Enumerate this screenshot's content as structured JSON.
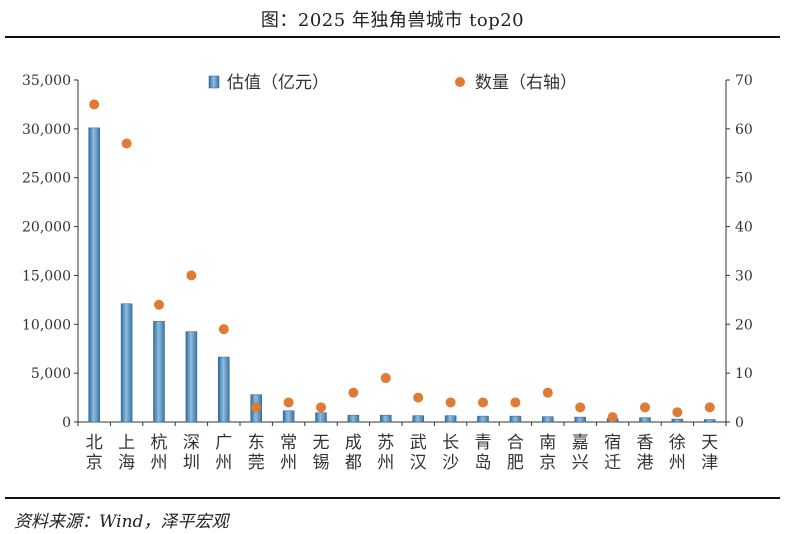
{
  "title": "图：2025 年独角兽城市 top20",
  "source": "资料来源：Wind，泽平宏观",
  "chart_data": {
    "type": "bar",
    "categories": [
      "北京",
      "上海",
      "杭州",
      "深圳",
      "广州",
      "东莞",
      "常州",
      "无锡",
      "成都",
      "苏州",
      "武汉",
      "长沙",
      "青岛",
      "合肥",
      "南京",
      "嘉兴",
      "宿迁",
      "香港",
      "徐州",
      "天津"
    ],
    "series": [
      {
        "name": "估值（亿元）",
        "kind": "bar",
        "axis": "left",
        "color": "#4f87b5",
        "values": [
          30100,
          12100,
          10300,
          9250,
          6650,
          2800,
          1150,
          950,
          700,
          700,
          650,
          650,
          600,
          600,
          550,
          500,
          350,
          450,
          300,
          250
        ]
      },
      {
        "name": "数量（右轴）",
        "kind": "scatter",
        "axis": "right",
        "color": "#e07b33",
        "values": [
          65,
          57,
          24,
          30,
          19,
          3,
          4,
          3,
          6,
          9,
          5,
          4,
          4,
          4,
          6,
          3,
          1,
          3,
          2,
          3
        ]
      }
    ],
    "ylim_left": [
      0,
      35000
    ],
    "yticks_left": [
      "0",
      "5,000",
      "10,000",
      "15,000",
      "20,000",
      "25,000",
      "30,000",
      "35,000"
    ],
    "ylim_right": [
      0,
      70
    ],
    "yticks_right": [
      "0",
      "10",
      "20",
      "30",
      "40",
      "50",
      "60",
      "70"
    ],
    "legend_position": "top-center",
    "grid": false
  }
}
